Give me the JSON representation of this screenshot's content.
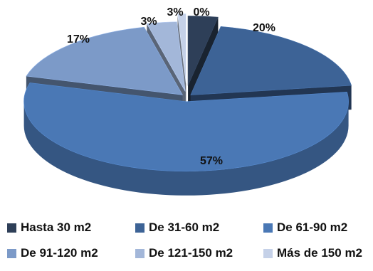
{
  "chart_data": {
    "type": "pie",
    "title": "",
    "categories": [
      "Hasta 30 m2",
      "De 31-60 m2",
      "De 61-90 m2",
      "De 91-120 m2",
      "De 121-150 m2",
      "Más de 150 m2"
    ],
    "values": [
      3,
      20,
      57,
      17,
      3,
      0
    ],
    "value_labels": [
      "3%",
      "20%",
      "57%",
      "17%",
      "3%",
      "0%"
    ],
    "colors": [
      "#2e3f58",
      "#3d6396",
      "#4a78b5",
      "#7c9ac8",
      "#a3b7d9",
      "#c5d1e8"
    ],
    "legend_position": "bottom",
    "exploded": true,
    "style": "3d"
  }
}
